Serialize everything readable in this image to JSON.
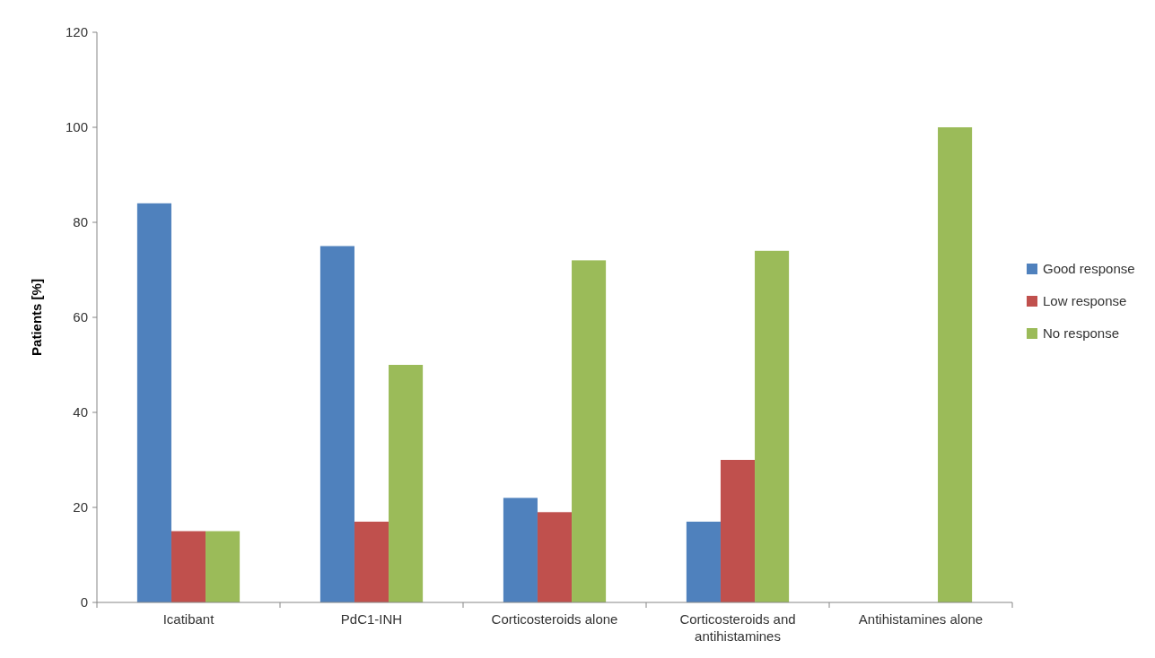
{
  "chart_data": {
    "type": "bar",
    "ylabel": "Patients [%]",
    "categories": [
      "Icatibant",
      "PdC1-INH",
      "Corticosteroids alone",
      "Corticosteroids and antihistamines",
      "Antihistamines alone"
    ],
    "series": [
      {
        "name": "Good response",
        "color": "#4f81bd",
        "values": [
          84,
          75,
          22,
          17,
          0
        ]
      },
      {
        "name": "Low response",
        "color": "#c0504d",
        "values": [
          15,
          17,
          19,
          30,
          0
        ]
      },
      {
        "name": "No response",
        "color": "#9bbb59",
        "values": [
          15,
          50,
          72,
          74,
          100
        ]
      }
    ],
    "ylim": [
      0,
      120
    ],
    "yticks": [
      0,
      20,
      40,
      60,
      80,
      100,
      120
    ],
    "legend": "right"
  }
}
